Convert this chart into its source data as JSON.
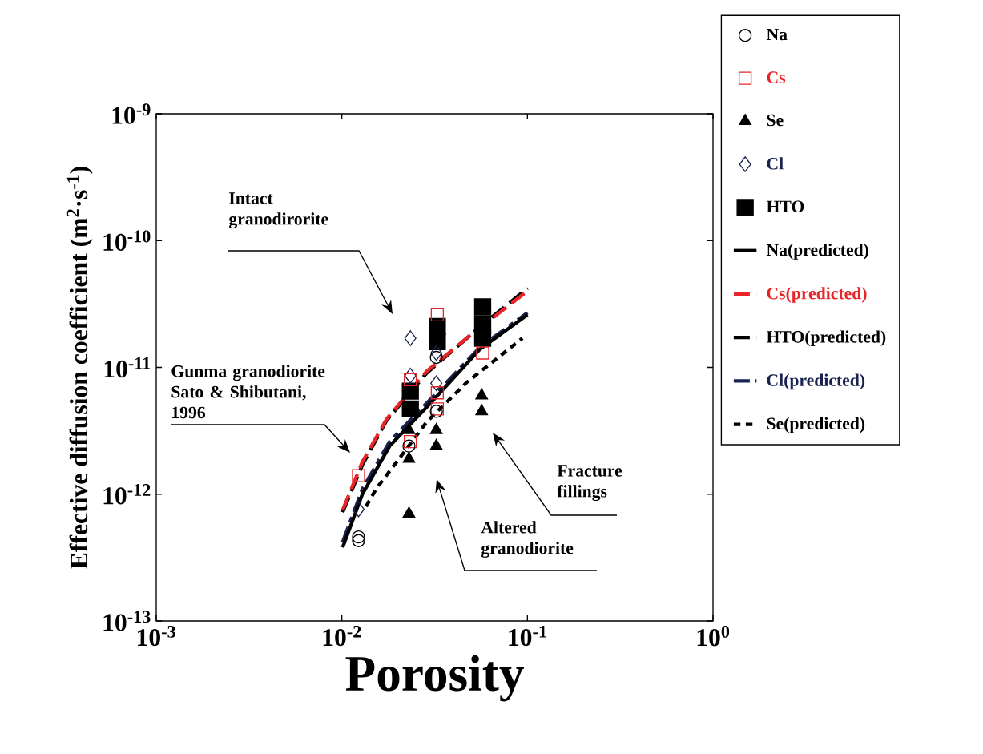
{
  "chart_data": {
    "type": "scatter",
    "xlabel": "Porosity",
    "ylabel": "Effective diffusion coefficient (m$^{2}$·s$^{-1}$)",
    "log": "xy",
    "xlim": [
      0.001,
      1
    ],
    "ylim": [
      1e-13,
      1e-09
    ],
    "xticks": [
      {
        "value": 0.001,
        "label": "10$^{-3}$"
      },
      {
        "value": 0.01,
        "label": "10$^{-2}$"
      },
      {
        "value": 0.1,
        "label": "10$^{-1}$"
      },
      {
        "value": 1,
        "label": "10$^{0}$"
      }
    ],
    "yticks": [
      {
        "value": 1e-13,
        "label": "10$^{-13}$"
      },
      {
        "value": 1e-12,
        "label": "10$^{-12}$"
      },
      {
        "value": 1e-11,
        "label": "10$^{-11}$"
      },
      {
        "value": 1e-10,
        "label": "10$^{-10}$"
      },
      {
        "value": 1e-09,
        "label": "10$^{-9}$"
      }
    ],
    "legend": "right",
    "annotations": [
      "Intact granodirorite",
      "Gunma granodiorite Sato & Shibutani, 1996",
      "Fracture fillings",
      "Altered granodiorite"
    ],
    "series": [
      {
        "name": "Na",
        "type": "scatter",
        "marker": "circle",
        "color": "#000000",
        "x": [
          0.0123,
          0.0123,
          0.023,
          0.0323,
          0.0323
        ],
        "values": [
          4.6e-13,
          4.3e-13,
          2.4e-12,
          4.5e-12,
          1.2e-11
        ]
      },
      {
        "name": "Cs",
        "type": "scatter",
        "marker": "square",
        "color": "#e8262a",
        "x": [
          0.0123,
          0.0234,
          0.0234,
          0.0327,
          0.0327,
          0.0327,
          0.0574
        ],
        "values": [
          1.4e-12,
          8e-12,
          2.6e-12,
          2.6e-11,
          6.3e-12,
          4.7e-12,
          1.3e-11
        ]
      },
      {
        "name": "Se",
        "type": "scatter",
        "marker": "triangle",
        "color": "#000000",
        "x": [
          0.023,
          0.023,
          0.023,
          0.0323,
          0.0323,
          0.0567,
          0.0567
        ],
        "values": [
          7e-13,
          1.9e-12,
          3.2e-12,
          2.4e-12,
          3.2e-12,
          4.5e-12,
          6e-12
        ]
      },
      {
        "name": "Cl",
        "type": "scatter",
        "marker": "diamond",
        "color": "#1a2350",
        "x": [
          0.0123,
          0.0234,
          0.0234,
          0.0323,
          0.0323
        ],
        "values": [
          7.6e-13,
          1.7e-11,
          8.6e-12,
          1.3e-11,
          7.5e-12
        ]
      },
      {
        "name": "HTO",
        "type": "scatter",
        "marker": "square",
        "color": "#000000",
        "x": [
          0.0234,
          0.0234,
          0.0327,
          0.0327,
          0.0574,
          0.0574,
          0.0574
        ],
        "values": [
          6.5e-12,
          4.7e-12,
          2.1e-11,
          1.6e-11,
          3e-11,
          2.2e-11,
          1.7e-11
        ]
      },
      {
        "name": "Na(predicted)",
        "type": "line",
        "line_style": "solid",
        "color": "#000000",
        "x": [
          0.0101,
          0.0129,
          0.0181,
          0.0307,
          0.0557,
          0.1
        ],
        "values": [
          3.8e-13,
          1e-12,
          2.4e-12,
          5.4e-12,
          1.4e-11,
          2.6e-11
        ]
      },
      {
        "name": "Cs(predicted)",
        "type": "line",
        "line_style": "dashed",
        "color": "#e8262a",
        "x": [
          0.0101,
          0.0129,
          0.0174,
          0.0286,
          0.047,
          0.1
        ],
        "values": [
          7.5e-13,
          1.8e-12,
          3.9e-12,
          9.3e-12,
          1.7e-11,
          4e-11
        ]
      },
      {
        "name": "HTO(predicted)",
        "type": "line",
        "line_style": "dashed",
        "color": "#000000",
        "x": [
          0.0101,
          0.0129,
          0.0174,
          0.0286,
          0.0557,
          0.1
        ],
        "values": [
          7.2e-13,
          1.7e-12,
          3.8e-12,
          9e-12,
          2.1e-11,
          4.2e-11
        ]
      },
      {
        "name": "Cl(predicted)",
        "type": "line",
        "line_style": "dashdot",
        "color": "#1a2350",
        "x": [
          0.0101,
          0.0129,
          0.0181,
          0.0307,
          0.0557,
          0.1
        ],
        "values": [
          4.2e-13,
          1.1e-12,
          2.6e-12,
          5.8e-12,
          1.45e-11,
          2.7e-11
        ]
      },
      {
        "name": "Se(predicted)",
        "type": "line",
        "line_style": "dotted",
        "color": "#000000",
        "x": [
          0.0135,
          0.0153,
          0.0206,
          0.0286,
          0.047,
          0.094
        ],
        "values": [
          8e-13,
          1.1e-12,
          1.95e-12,
          3.7e-12,
          7.6e-12,
          1.7e-11
        ]
      }
    ]
  }
}
